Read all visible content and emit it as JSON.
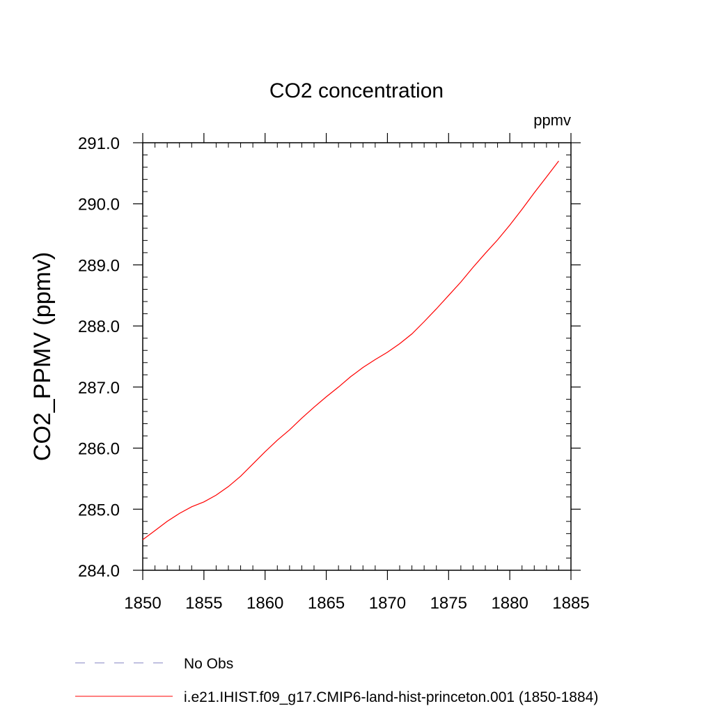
{
  "chart_data": {
    "type": "line",
    "title": "CO2 concentration",
    "units": "ppmv",
    "xlabel": "",
    "ylabel": "CO2_PPMV  (ppmv)",
    "xlim": [
      1850,
      1885
    ],
    "ylim": [
      284.0,
      291.0
    ],
    "x_ticks": [
      1850,
      1855,
      1860,
      1865,
      1870,
      1875,
      1880,
      1885
    ],
    "x_tick_labels": [
      "1850",
      "1855",
      "1860",
      "1865",
      "1870",
      "1875",
      "1880",
      "1885"
    ],
    "y_ticks": [
      284.0,
      285.0,
      286.0,
      287.0,
      288.0,
      289.0,
      290.0,
      291.0
    ],
    "y_tick_labels": [
      "284.0",
      "285.0",
      "286.0",
      "287.0",
      "288.0",
      "289.0",
      "290.0",
      "291.0"
    ],
    "grid": false,
    "legend_position": "bottom",
    "series": [
      {
        "name": "i.e21.IHIST.f09_g17.CMIP6-land-hist-princeton.001 (1850-1884)",
        "color": "#ff0000",
        "style": "solid",
        "x": [
          1850,
          1851,
          1852,
          1853,
          1854,
          1855,
          1856,
          1857,
          1858,
          1859,
          1860,
          1861,
          1862,
          1863,
          1864,
          1865,
          1866,
          1867,
          1868,
          1869,
          1870,
          1871,
          1872,
          1873,
          1874,
          1875,
          1876,
          1877,
          1878,
          1879,
          1880,
          1881,
          1882,
          1883,
          1884
        ],
        "values": [
          284.5,
          284.65,
          284.8,
          284.93,
          285.04,
          285.12,
          285.23,
          285.37,
          285.54,
          285.74,
          285.94,
          286.13,
          286.3,
          286.49,
          286.67,
          286.84,
          287.0,
          287.17,
          287.32,
          287.45,
          287.57,
          287.71,
          287.87,
          288.07,
          288.28,
          288.5,
          288.72,
          288.96,
          289.19,
          289.41,
          289.65,
          289.91,
          290.18,
          290.44,
          290.7
        ]
      }
    ],
    "legend": [
      {
        "label": "No Obs",
        "color": "#8080c0",
        "style": "dashed"
      },
      {
        "label": "i.e21.IHIST.f09_g17.CMIP6-land-hist-princeton.001 (1850-1884)",
        "color": "#ff0000",
        "style": "solid"
      }
    ]
  }
}
